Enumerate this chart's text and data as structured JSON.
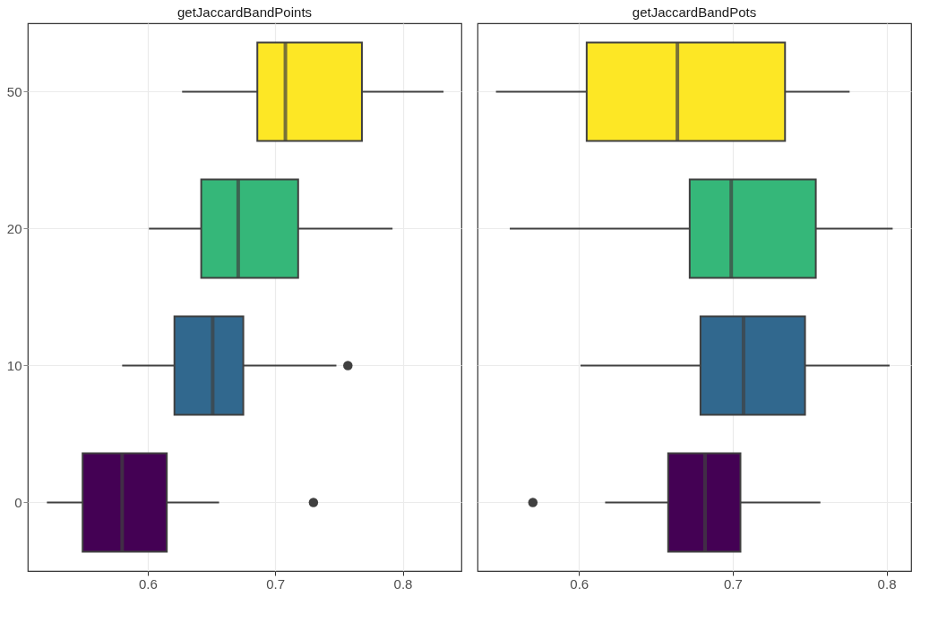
{
  "chart_data": [
    {
      "type": "box",
      "title": "getJaccardBandPoints",
      "orientation": "horizontal",
      "categories": [
        "50",
        "20",
        "10",
        "0"
      ],
      "colors": [
        "#fde725",
        "#35b779",
        "#31688e",
        "#440154"
      ],
      "boxes": [
        {
          "low": 0.627,
          "q1": 0.686,
          "median": 0.708,
          "q3": 0.768,
          "high": 0.832
        },
        {
          "low": 0.601,
          "q1": 0.642,
          "median": 0.671,
          "q3": 0.718,
          "high": 0.792
        },
        {
          "low": 0.58,
          "q1": 0.621,
          "median": 0.651,
          "q3": 0.675,
          "high": 0.748,
          "outliers": [
            0.757
          ]
        },
        {
          "low": 0.521,
          "q1": 0.549,
          "median": 0.58,
          "q3": 0.615,
          "high": 0.656,
          "outliers": [
            0.73
          ]
        }
      ],
      "xlim": [
        0.506,
        0.846
      ],
      "xticks": [
        0.6,
        0.7,
        0.8
      ],
      "grid": true
    },
    {
      "type": "box",
      "title": "getJaccardBandPots",
      "orientation": "horizontal",
      "categories": [
        "50",
        "20",
        "10",
        "0"
      ],
      "colors": [
        "#fde725",
        "#35b779",
        "#31688e",
        "#440154"
      ],
      "boxes": [
        {
          "low": 0.546,
          "q1": 0.605,
          "median": 0.664,
          "q3": 0.734,
          "high": 0.776
        },
        {
          "low": 0.555,
          "q1": 0.672,
          "median": 0.699,
          "q3": 0.754,
          "high": 0.804
        },
        {
          "low": 0.601,
          "q1": 0.679,
          "median": 0.707,
          "q3": 0.747,
          "high": 0.802
        },
        {
          "low": 0.617,
          "q1": 0.658,
          "median": 0.682,
          "q3": 0.705,
          "high": 0.757,
          "outliers": [
            0.57
          ]
        }
      ],
      "xlim": [
        0.534,
        0.816
      ],
      "xticks": [
        0.6,
        0.7,
        0.8
      ],
      "grid": true,
      "tick_labels": "x"
    }
  ]
}
